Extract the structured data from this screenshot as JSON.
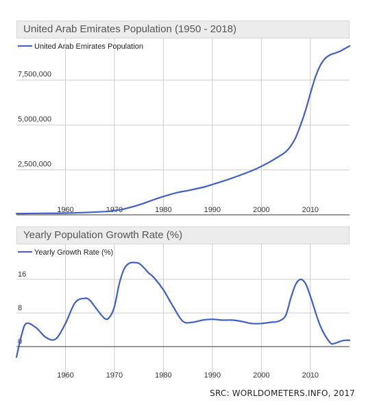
{
  "source": "SRC: WORLDOMETERS.INFO, 2017",
  "colors": {
    "line": "#3f5ec7",
    "grid": "#cccccc",
    "axis": "#333333",
    "title_bg": "#ececec"
  },
  "chart_data": [
    {
      "type": "line",
      "title": "United Arab Emirates Population (1950 - 2018)",
      "legend": "United Arab Emirates Population",
      "legend_position": "top-left",
      "grid": true,
      "xlim": [
        1950,
        2018
      ],
      "ylim": [
        0,
        9400000
      ],
      "x_ticks": [
        "1960",
        "1970",
        "1980",
        "1990",
        "2000",
        "2010"
      ],
      "y_ticks": [
        "2,500,000",
        "5,000,000",
        "7,500,000"
      ],
      "series": [
        {
          "name": "United Arab Emirates Population",
          "x": [
            1950,
            1955,
            1960,
            1965,
            1968,
            1970,
            1972,
            1975,
            1978,
            1980,
            1983,
            1985,
            1988,
            1990,
            1993,
            1995,
            1998,
            2000,
            2002,
            2004,
            2005,
            2006,
            2007,
            2008,
            2009,
            2010,
            2011,
            2012,
            2013,
            2014,
            2015,
            2016,
            2017,
            2018
          ],
          "values": [
            70000,
            85000,
            95000,
            140000,
            180000,
            235000,
            330000,
            550000,
            840000,
            1020000,
            1250000,
            1350000,
            1530000,
            1690000,
            1950000,
            2140000,
            2450000,
            2700000,
            2990000,
            3320000,
            3520000,
            3830000,
            4300000,
            4990000,
            5800000,
            6750000,
            7650000,
            8300000,
            8700000,
            8900000,
            9000000,
            9100000,
            9250000,
            9400000
          ]
        }
      ]
    },
    {
      "type": "line",
      "title": "Yearly Population Growth Rate (%)",
      "legend": "Yearly Growth Rate (%)",
      "legend_position": "top-left",
      "grid": true,
      "xlim": [
        1950,
        2018
      ],
      "ylim": [
        0,
        24
      ],
      "x_ticks": [
        "1960",
        "1970",
        "1980",
        "1990",
        "2000",
        "2010"
      ],
      "y_ticks": [
        "0",
        "8",
        "16"
      ],
      "series": [
        {
          "name": "Yearly Growth Rate (%)",
          "x": [
            1950,
            1951,
            1952,
            1954,
            1956,
            1958,
            1960,
            1962,
            1964,
            1965,
            1966,
            1968,
            1969,
            1970,
            1971,
            1972,
            1973,
            1974,
            1975,
            1976,
            1977,
            1978,
            1980,
            1982,
            1984,
            1986,
            1988,
            1990,
            1992,
            1994,
            1996,
            1998,
            2000,
            2002,
            2003,
            2004,
            2005,
            2006,
            2007,
            2008,
            2009,
            2010,
            2012,
            2014,
            2015,
            2016,
            2017,
            2018
          ],
          "values": [
            -2.5,
            2.5,
            5.5,
            4.5,
            2.2,
            1.8,
            5.5,
            10.5,
            11.5,
            11.0,
            9.5,
            6.7,
            7.0,
            9.5,
            15.0,
            18.5,
            19.8,
            20.0,
            19.8,
            18.8,
            17.5,
            16.5,
            13.5,
            9.5,
            6.0,
            5.8,
            6.3,
            6.5,
            6.3,
            6.3,
            6.0,
            5.5,
            5.5,
            5.8,
            5.9,
            6.3,
            7.5,
            11.5,
            14.8,
            16.0,
            15.0,
            12.0,
            5.0,
            1.0,
            0.8,
            1.2,
            1.5,
            1.5
          ]
        }
      ]
    }
  ]
}
